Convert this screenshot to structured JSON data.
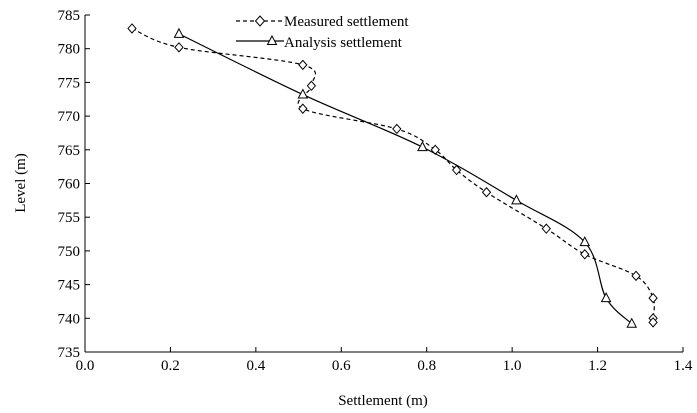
{
  "chart_data": {
    "type": "line",
    "title": "",
    "xlabel": "Settlement (m)",
    "ylabel": "Level (m)",
    "xlim": [
      0.0,
      1.4
    ],
    "ylim": [
      735,
      785
    ],
    "xticks": [
      "0.0",
      "0.2",
      "0.4",
      "0.6",
      "0.8",
      "1.0",
      "1.2",
      "1.4"
    ],
    "yticks": [
      "735",
      "740",
      "745",
      "750",
      "755",
      "760",
      "765",
      "770",
      "775",
      "780",
      "785"
    ],
    "grid": false,
    "legend_position": "top-center",
    "series": [
      {
        "name": "Measured settlement",
        "marker": "diamond",
        "line_style": "dashed",
        "color": "#000000",
        "points": [
          [
            0.11,
            783.0
          ],
          [
            0.22,
            780.2
          ],
          [
            0.51,
            777.6
          ],
          [
            0.53,
            774.5
          ],
          [
            0.51,
            771.1
          ],
          [
            0.73,
            768.1
          ],
          [
            0.82,
            765.0
          ],
          [
            0.87,
            762.0
          ],
          [
            0.94,
            758.7
          ],
          [
            1.08,
            753.3
          ],
          [
            1.17,
            749.5
          ],
          [
            1.29,
            746.3
          ],
          [
            1.33,
            743.0
          ],
          [
            1.33,
            740.0
          ],
          [
            1.33,
            739.4
          ]
        ]
      },
      {
        "name": "Analysis settlement",
        "marker": "triangle",
        "line_style": "solid",
        "color": "#000000",
        "points": [
          [
            0.22,
            782.2
          ],
          [
            0.51,
            773.2
          ],
          [
            0.79,
            765.4
          ],
          [
            1.01,
            757.5
          ],
          [
            1.17,
            751.3
          ],
          [
            1.22,
            743.0
          ],
          [
            1.28,
            739.2
          ]
        ]
      }
    ]
  }
}
